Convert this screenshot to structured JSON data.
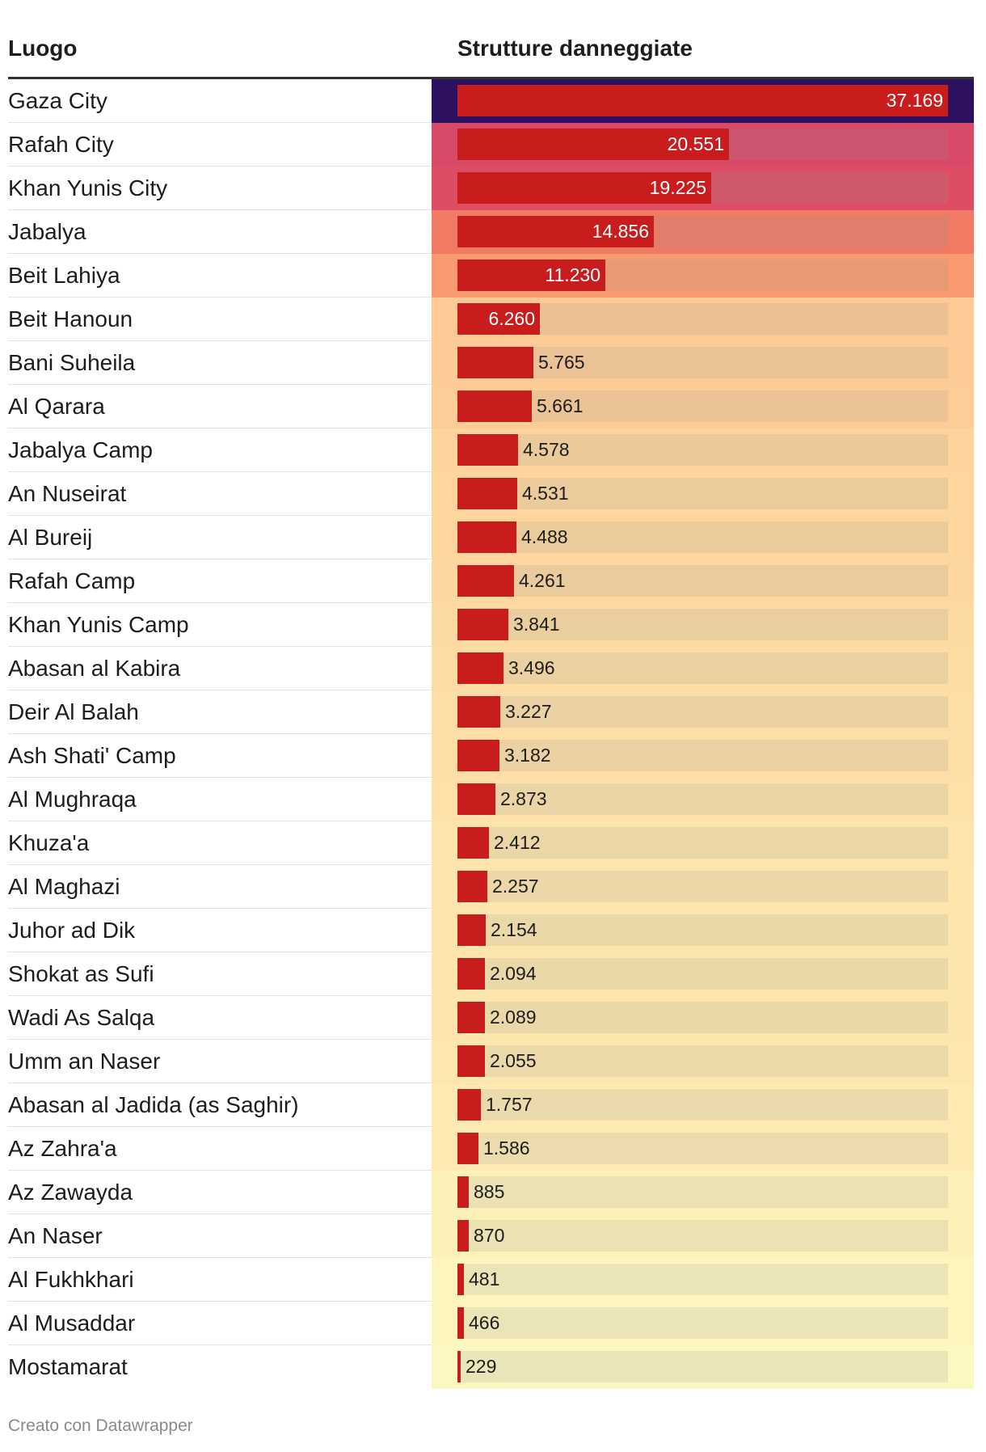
{
  "chart_data": {
    "type": "table",
    "columns": [
      "Luogo",
      "Strutture danneggiate"
    ],
    "unit": "",
    "rows": [
      {
        "place": "Gaza City",
        "value": 37169,
        "label": "37.169",
        "cell_color": "#2d1160"
      },
      {
        "place": "Rafah City",
        "value": 20551,
        "label": "20.551",
        "cell_color": "#d94968"
      },
      {
        "place": "Khan Yunis City",
        "value": 19225,
        "label": "19.225",
        "cell_color": "#dd4e65"
      },
      {
        "place": "Jabalya",
        "value": 14856,
        "label": "14.856",
        "cell_color": "#f07a64"
      },
      {
        "place": "Beit Lahiya",
        "value": 11230,
        "label": "11.230",
        "cell_color": "#f99a70"
      },
      {
        "place": "Beit Hanoun",
        "value": 6260,
        "label": "6.260",
        "cell_color": "#fdc994"
      },
      {
        "place": "Bani Suheila",
        "value": 5765,
        "label": "5.765",
        "cell_color": "#fdcc96"
      },
      {
        "place": "Al Qarara",
        "value": 5661,
        "label": "5.661",
        "cell_color": "#fdcd97"
      },
      {
        "place": "Jabalya Camp",
        "value": 4578,
        "label": "4.578",
        "cell_color": "#fdd49c"
      },
      {
        "place": "An Nuseirat",
        "value": 4531,
        "label": "4.531",
        "cell_color": "#fdd59d"
      },
      {
        "place": "Al Bureij",
        "value": 4488,
        "label": "4.488",
        "cell_color": "#fdd59d"
      },
      {
        "place": "Rafah Camp",
        "value": 4261,
        "label": "4.261",
        "cell_color": "#fdd79f"
      },
      {
        "place": "Khan Yunis Camp",
        "value": 3841,
        "label": "3.841",
        "cell_color": "#fddaa2"
      },
      {
        "place": "Abasan al Kabira",
        "value": 3496,
        "label": "3.496",
        "cell_color": "#fddca4"
      },
      {
        "place": "Deir Al Balah",
        "value": 3227,
        "label": "3.227",
        "cell_color": "#fddea6"
      },
      {
        "place": "Ash Shati' Camp",
        "value": 3182,
        "label": "3.182",
        "cell_color": "#fddea6"
      },
      {
        "place": "Al Mughraqa",
        "value": 2873,
        "label": "2.873",
        "cell_color": "#fde1a9"
      },
      {
        "place": "Khuza'a",
        "value": 2412,
        "label": "2.412",
        "cell_color": "#fde4ac"
      },
      {
        "place": "Al Maghazi",
        "value": 2257,
        "label": "2.257",
        "cell_color": "#fde5ad"
      },
      {
        "place": "Juhor ad Dik",
        "value": 2154,
        "label": "2.154",
        "cell_color": "#fde6ae"
      },
      {
        "place": "Shokat as Sufi",
        "value": 2094,
        "label": "2.094",
        "cell_color": "#fde6ae"
      },
      {
        "place": "Wadi As Salqa",
        "value": 2089,
        "label": "2.089",
        "cell_color": "#fde6ae"
      },
      {
        "place": "Umm an Naser",
        "value": 2055,
        "label": "2.055",
        "cell_color": "#fde7af"
      },
      {
        "place": "Abasan al Jadida (as Saghir)",
        "value": 1757,
        "label": "1.757",
        "cell_color": "#fde9b1"
      },
      {
        "place": "Az Zahra'a",
        "value": 1586,
        "label": "1.586",
        "cell_color": "#fdeab3"
      },
      {
        "place": "Az Zawayda",
        "value": 885,
        "label": "885",
        "cell_color": "#fdf1ba"
      },
      {
        "place": "An Naser",
        "value": 870,
        "label": "870",
        "cell_color": "#fdf1ba"
      },
      {
        "place": "Al Fukhkhari",
        "value": 481,
        "label": "481",
        "cell_color": "#fdf5be"
      },
      {
        "place": "Al Musaddar",
        "value": 466,
        "label": "466",
        "cell_color": "#fdf5be"
      },
      {
        "place": "Mostamarat",
        "value": 229,
        "label": "229",
        "cell_color": "#fdf7c1"
      }
    ],
    "max_value": 37169,
    "bar_color": "#c91d1d"
  },
  "header": {
    "place_label": "Luogo",
    "value_label": "Strutture danneggiate"
  },
  "footer": {
    "credit": "Creato con Datawrapper"
  }
}
